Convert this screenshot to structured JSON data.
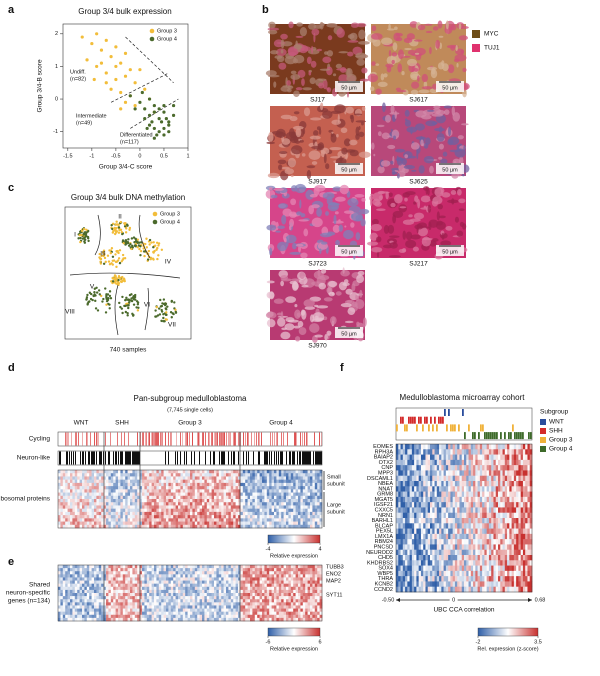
{
  "panels": {
    "a": {
      "label": "a",
      "title": "Group 3/4 bulk expression",
      "xlabel": "Group 3/4-C score",
      "ylabel": "Group 3/4-B score",
      "xlim": [
        -1.6,
        1.0
      ],
      "ylim": [
        -1.5,
        2.3
      ],
      "xticks": [
        -1.5,
        -1,
        -0.5,
        0,
        0.5,
        1
      ],
      "yticks": [
        -1,
        0,
        1,
        2
      ],
      "annotations": [
        [
          "Undiff.",
          "(n=82)"
        ],
        [
          "Intermediate",
          "(n=49)"
        ],
        [
          "Differentiated",
          "(n=117)"
        ]
      ],
      "series": [
        {
          "name": "Group 3",
          "color": "#f2bd3a",
          "x": [
            -1.2,
            -1.0,
            -0.9,
            -0.8,
            -0.7,
            -0.6,
            -0.5,
            -0.4,
            -0.3,
            -0.2,
            -0.9,
            -0.7,
            -0.5,
            -0.3,
            -0.1,
            0,
            -0.6,
            -0.4,
            -0.2,
            0.1,
            -1.1,
            -0.8,
            -0.5,
            -0.3,
            0.2,
            -0.7,
            -0.4,
            -0.1,
            0.3,
            -0.95
          ],
          "y": [
            1.9,
            1.7,
            2.0,
            1.5,
            1.8,
            1.3,
            1.6,
            1.1,
            1.4,
            0.9,
            1.0,
            0.8,
            0.6,
            0.7,
            0.5,
            0.9,
            0.3,
            0.2,
            0.1,
            0.3,
            1.2,
            1.1,
            1.0,
            -0.1,
            0.0,
            0.5,
            -0.3,
            -0.2,
            -0.4,
            0.6
          ]
        },
        {
          "name": "Group 4",
          "color": "#4b6a2c",
          "x": [
            0.1,
            0.2,
            0.3,
            0.4,
            0.5,
            0.6,
            0.7,
            0.2,
            0.3,
            0.4,
            0.5,
            0.6,
            0.0,
            0.1,
            0.3,
            0.5,
            0.35,
            0.45,
            0.55,
            0.25,
            0.15,
            0.4,
            0.6,
            0.3,
            0.5,
            -0.2,
            -0.1,
            0.05,
            0.7,
            0.2
          ],
          "y": [
            -0.3,
            -0.5,
            -0.2,
            -0.6,
            -0.4,
            -0.7,
            -0.5,
            -0.8,
            -0.9,
            -1.0,
            -0.9,
            -0.8,
            -0.1,
            -0.6,
            -0.4,
            -0.2,
            -1.1,
            -0.7,
            -0.6,
            -0.7,
            -0.9,
            -0.3,
            -1.0,
            -1.2,
            -1.1,
            0.1,
            -0.3,
            0.2,
            -0.2,
            0.0
          ]
        }
      ]
    },
    "b": {
      "label": "b",
      "legend": [
        {
          "name": "MYC",
          "color": "#6e4d17"
        },
        {
          "name": "TUJ1",
          "color": "#e0326e"
        }
      ],
      "scale_bar": "50 µm",
      "samples": [
        "SJ17",
        "SJ617",
        "SJ917",
        "SJ625",
        "SJ723",
        "SJ217",
        "SJ970"
      ]
    },
    "c": {
      "label": "c",
      "title": "Group 3/4 bulk DNA methylation",
      "caption": "740 samples",
      "legend": [
        {
          "name": "Group 3",
          "color": "#f2bd3a"
        },
        {
          "name": "Group 4",
          "color": "#4b6a2c"
        }
      ],
      "clusters": [
        "I",
        "II",
        "III",
        "IV",
        "V",
        "VI",
        "VII",
        "VIII"
      ]
    },
    "d": {
      "label": "d",
      "title": "Pan-subgroup medulloblastoma",
      "subtitle": "(7,745 single cells)",
      "groups": [
        "WNT",
        "SHH",
        "Group 3",
        "Group 4"
      ],
      "rows": [
        "Cycling",
        "Neuron-like",
        "Ribosomal proteins"
      ],
      "right_labels": [
        [
          "Small",
          "subunit"
        ],
        [
          "Large",
          "subunit"
        ]
      ],
      "colorbar": {
        "ticks": [
          -4,
          4
        ],
        "label": "Relative expression"
      }
    },
    "e": {
      "label": "e",
      "row_label": [
        "Shared",
        "neuron-specific",
        "genes (n=134)"
      ],
      "genes": [
        "TUBB3",
        "ENO2",
        "MAP2",
        "SYT11"
      ],
      "colorbar": {
        "ticks": [
          -6,
          6
        ],
        "label": "Relative expression"
      }
    },
    "f": {
      "label": "f",
      "title": "Medulloblastoma microarray cohort",
      "legend_title": "Subgroup",
      "legend": [
        {
          "name": "WNT",
          "color": "#2a4d9c"
        },
        {
          "name": "SHH",
          "color": "#d42a2a"
        },
        {
          "name": "Group 3",
          "color": "#f0b23a"
        },
        {
          "name": "Group 4",
          "color": "#3e6a2a"
        }
      ],
      "genes": [
        "EOMES",
        "RPH3A",
        "BAIAP2",
        "OTX2",
        "CNP",
        "MPP3",
        "DSCAML1",
        "NBEA",
        "NNAT",
        "GRM8",
        "MGAT5",
        "IGSF21",
        "CXXC5",
        "NRN1",
        "BARHL1",
        "BLCAP",
        "PEX5L",
        "LMX1A",
        "RBM24",
        "PNCSD",
        "NEUROD2",
        "CHD5",
        "KHDRBS2",
        "SOX4",
        "WBP5",
        "THRA",
        "KCNB2",
        "CCND2"
      ],
      "xlim": [
        -0.5,
        0.68
      ],
      "xticks": [
        {
          "value": -0.5,
          "label": "-0.50"
        },
        0,
        0.68
      ],
      "xlabel": "UBC CCA correlation",
      "colorbar": {
        "ticks": [
          -2,
          3.5
        ],
        "label": "Rel. expression (z-score)"
      }
    }
  }
}
